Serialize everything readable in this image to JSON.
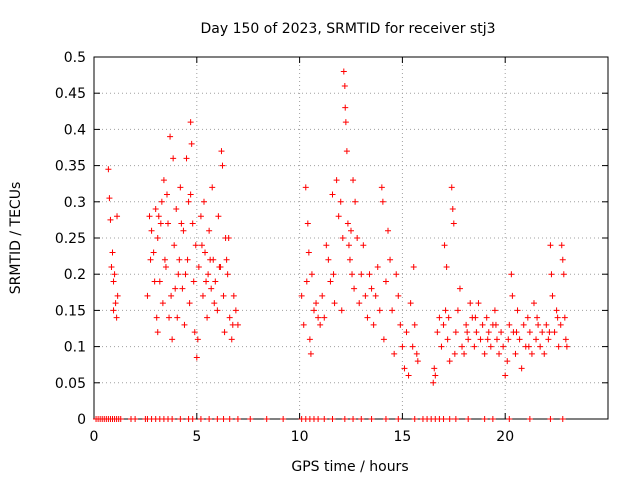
{
  "chart_data": {
    "type": "scatter",
    "title": "Day 150 of 2023, SRMTID for receiver stj3",
    "xlabel": "GPS time / hours",
    "ylabel": "SRMTID / TECUs",
    "xlim": [
      0,
      25
    ],
    "ylim": [
      0,
      0.5
    ],
    "xticks": [
      0,
      5,
      10,
      15,
      20
    ],
    "yticks": [
      0,
      0.05,
      0.1,
      0.15,
      0.2,
      0.25,
      0.3,
      0.35,
      0.4,
      0.45,
      0.5
    ],
    "xtick_labels": [
      "0",
      "5",
      "10",
      "15",
      "20"
    ],
    "ytick_labels": [
      "0",
      "0.05",
      "0.1",
      "0.15",
      "0.2",
      "0.25",
      "0.3",
      "0.35",
      "0.4",
      "0.45",
      "0.5"
    ],
    "grid": true,
    "marker": "+",
    "color": "#ff0000",
    "series": [
      {
        "name": "SRMTID",
        "points": [
          [
            0.7,
            0.345
          ],
          [
            0.75,
            0.305
          ],
          [
            0.8,
            0.275
          ],
          [
            0.85,
            0.21
          ],
          [
            0.9,
            0.23
          ],
          [
            0.95,
            0.19
          ],
          [
            1.0,
            0.2
          ],
          [
            1.05,
            0.16
          ],
          [
            1.1,
            0.14
          ],
          [
            1.12,
            0.28
          ],
          [
            1.15,
            0.17
          ],
          [
            0.95,
            0.15
          ],
          [
            2.6,
            0.17
          ],
          [
            2.7,
            0.28
          ],
          [
            2.8,
            0.26
          ],
          [
            2.9,
            0.23
          ],
          [
            3.0,
            0.29
          ],
          [
            3.1,
            0.25
          ],
          [
            3.1,
            0.12
          ],
          [
            3.2,
            0.19
          ],
          [
            3.3,
            0.3
          ],
          [
            3.35,
            0.16
          ],
          [
            3.4,
            0.33
          ],
          [
            3.5,
            0.21
          ],
          [
            3.6,
            0.27
          ],
          [
            3.7,
            0.39
          ],
          [
            3.75,
            0.17
          ],
          [
            3.8,
            0.11
          ],
          [
            3.85,
            0.36
          ],
          [
            3.9,
            0.24
          ],
          [
            4.0,
            0.29
          ],
          [
            4.05,
            0.14
          ],
          [
            4.1,
            0.2
          ],
          [
            4.2,
            0.32
          ],
          [
            4.3,
            0.18
          ],
          [
            4.35,
            0.26
          ],
          [
            4.4,
            0.13
          ],
          [
            4.5,
            0.36
          ],
          [
            4.55,
            0.22
          ],
          [
            4.6,
            0.3
          ],
          [
            4.65,
            0.16
          ],
          [
            4.7,
            0.41
          ],
          [
            4.75,
            0.38
          ],
          [
            4.8,
            0.27
          ],
          [
            4.85,
            0.19
          ],
          [
            4.9,
            0.12
          ],
          [
            4.95,
            0.24
          ],
          [
            5.0,
            0.085
          ],
          [
            5.05,
            0.11
          ],
          [
            5.1,
            0.21
          ],
          [
            5.2,
            0.28
          ],
          [
            5.3,
            0.17
          ],
          [
            5.35,
            0.3
          ],
          [
            5.4,
            0.23
          ],
          [
            5.5,
            0.14
          ],
          [
            5.55,
            0.2
          ],
          [
            5.6,
            0.26
          ],
          [
            5.7,
            0.18
          ],
          [
            5.75,
            0.32
          ],
          [
            5.8,
            0.22
          ],
          [
            5.9,
            0.19
          ],
          [
            6.0,
            0.15
          ],
          [
            6.05,
            0.28
          ],
          [
            6.1,
            0.21
          ],
          [
            6.2,
            0.37
          ],
          [
            6.25,
            0.35
          ],
          [
            6.3,
            0.17
          ],
          [
            6.35,
            0.12
          ],
          [
            6.4,
            0.25
          ],
          [
            6.5,
            0.2
          ],
          [
            6.6,
            0.14
          ],
          [
            6.7,
            0.11
          ],
          [
            6.8,
            0.17
          ],
          [
            6.9,
            0.15
          ],
          [
            7.0,
            0.13
          ],
          [
            3.05,
            0.14
          ],
          [
            3.25,
            0.27
          ],
          [
            3.45,
            0.22
          ],
          [
            3.65,
            0.14
          ],
          [
            4.15,
            0.22
          ],
          [
            4.25,
            0.27
          ],
          [
            4.45,
            0.2
          ],
          [
            5.25,
            0.24
          ],
          [
            5.45,
            0.19
          ],
          [
            5.65,
            0.22
          ],
          [
            5.85,
            0.16
          ],
          [
            6.15,
            0.21
          ],
          [
            6.45,
            0.22
          ],
          [
            6.55,
            0.25
          ],
          [
            6.75,
            0.13
          ],
          [
            2.75,
            0.22
          ],
          [
            2.95,
            0.19
          ],
          [
            3.15,
            0.28
          ],
          [
            3.55,
            0.31
          ],
          [
            3.95,
            0.18
          ],
          [
            4.7,
            0.31
          ],
          [
            10.1,
            0.17
          ],
          [
            10.2,
            0.13
          ],
          [
            10.3,
            0.32
          ],
          [
            10.35,
            0.19
          ],
          [
            10.4,
            0.27
          ],
          [
            10.45,
            0.23
          ],
          [
            10.5,
            0.11
          ],
          [
            10.55,
            0.09
          ],
          [
            10.6,
            0.2
          ],
          [
            10.7,
            0.15
          ],
          [
            10.8,
            0.16
          ],
          [
            10.9,
            0.14
          ],
          [
            11.0,
            0.13
          ],
          [
            11.1,
            0.17
          ],
          [
            11.2,
            0.14
          ],
          [
            11.3,
            0.24
          ],
          [
            11.4,
            0.22
          ],
          [
            11.5,
            0.19
          ],
          [
            11.6,
            0.31
          ],
          [
            11.65,
            0.2
          ],
          [
            11.7,
            0.16
          ],
          [
            11.8,
            0.33
          ],
          [
            11.9,
            0.28
          ],
          [
            12.0,
            0.3
          ],
          [
            12.05,
            0.15
          ],
          [
            12.1,
            0.25
          ],
          [
            12.15,
            0.48
          ],
          [
            12.2,
            0.46
          ],
          [
            12.22,
            0.43
          ],
          [
            12.25,
            0.41
          ],
          [
            12.3,
            0.37
          ],
          [
            12.35,
            0.27
          ],
          [
            12.4,
            0.24
          ],
          [
            12.45,
            0.22
          ],
          [
            12.5,
            0.26
          ],
          [
            12.55,
            0.2
          ],
          [
            12.6,
            0.33
          ],
          [
            12.65,
            0.18
          ],
          [
            12.7,
            0.3
          ],
          [
            12.8,
            0.25
          ],
          [
            12.9,
            0.16
          ],
          [
            13.0,
            0.2
          ],
          [
            13.1,
            0.24
          ],
          [
            13.2,
            0.17
          ],
          [
            13.3,
            0.14
          ],
          [
            13.4,
            0.2
          ],
          [
            13.5,
            0.18
          ],
          [
            13.6,
            0.13
          ],
          [
            13.7,
            0.17
          ],
          [
            13.8,
            0.21
          ],
          [
            13.9,
            0.15
          ],
          [
            14.0,
            0.32
          ],
          [
            14.05,
            0.3
          ],
          [
            14.1,
            0.11
          ],
          [
            14.2,
            0.19
          ],
          [
            14.3,
            0.26
          ],
          [
            14.4,
            0.22
          ],
          [
            14.5,
            0.15
          ],
          [
            14.6,
            0.09
          ],
          [
            14.7,
            0.2
          ],
          [
            14.8,
            0.17
          ],
          [
            14.9,
            0.13
          ],
          [
            15.0,
            0.1
          ],
          [
            15.1,
            0.07
          ],
          [
            15.2,
            0.12
          ],
          [
            15.3,
            0.06
          ],
          [
            15.4,
            0.16
          ],
          [
            15.5,
            0.1
          ],
          [
            15.55,
            0.21
          ],
          [
            15.6,
            0.13
          ],
          [
            15.7,
            0.09
          ],
          [
            15.75,
            0.08
          ],
          [
            16.5,
            0.05
          ],
          [
            16.55,
            0.07
          ],
          [
            16.6,
            0.06
          ],
          [
            16.7,
            0.12
          ],
          [
            16.8,
            0.14
          ],
          [
            16.9,
            0.1
          ],
          [
            17.0,
            0.13
          ],
          [
            17.05,
            0.24
          ],
          [
            17.1,
            0.15
          ],
          [
            17.15,
            0.21
          ],
          [
            17.2,
            0.11
          ],
          [
            17.3,
            0.08
          ],
          [
            17.4,
            0.32
          ],
          [
            17.45,
            0.29
          ],
          [
            17.5,
            0.27
          ],
          [
            17.6,
            0.12
          ],
          [
            17.7,
            0.15
          ],
          [
            17.8,
            0.18
          ],
          [
            17.9,
            0.1
          ],
          [
            18.0,
            0.09
          ],
          [
            18.1,
            0.13
          ],
          [
            18.2,
            0.11
          ],
          [
            18.3,
            0.16
          ],
          [
            18.4,
            0.14
          ],
          [
            18.5,
            0.1
          ],
          [
            18.6,
            0.12
          ],
          [
            18.7,
            0.16
          ],
          [
            18.8,
            0.11
          ],
          [
            18.9,
            0.13
          ],
          [
            19.0,
            0.09
          ],
          [
            19.1,
            0.14
          ],
          [
            19.2,
            0.12
          ],
          [
            19.3,
            0.1
          ],
          [
            19.4,
            0.13
          ],
          [
            19.5,
            0.15
          ],
          [
            19.6,
            0.11
          ],
          [
            19.7,
            0.09
          ],
          [
            19.8,
            0.12
          ],
          [
            19.9,
            0.1
          ],
          [
            20.0,
            0.06
          ],
          [
            20.1,
            0.08
          ],
          [
            20.2,
            0.13
          ],
          [
            20.3,
            0.2
          ],
          [
            20.35,
            0.17
          ],
          [
            20.4,
            0.12
          ],
          [
            20.5,
            0.09
          ],
          [
            20.6,
            0.15
          ],
          [
            20.7,
            0.11
          ],
          [
            20.8,
            0.07
          ],
          [
            20.9,
            0.13
          ],
          [
            21.0,
            0.1
          ],
          [
            21.1,
            0.14
          ],
          [
            21.2,
            0.12
          ],
          [
            21.3,
            0.09
          ],
          [
            21.4,
            0.16
          ],
          [
            21.5,
            0.11
          ],
          [
            21.6,
            0.13
          ],
          [
            21.7,
            0.1
          ],
          [
            21.8,
            0.12
          ],
          [
            21.9,
            0.09
          ],
          [
            22.0,
            0.13
          ],
          [
            22.1,
            0.11
          ],
          [
            22.2,
            0.24
          ],
          [
            22.25,
            0.2
          ],
          [
            22.3,
            0.17
          ],
          [
            22.4,
            0.12
          ],
          [
            22.5,
            0.15
          ],
          [
            22.6,
            0.1
          ],
          [
            22.7,
            0.13
          ],
          [
            22.75,
            0.24
          ],
          [
            22.8,
            0.22
          ],
          [
            22.85,
            0.2
          ],
          [
            22.9,
            0.14
          ],
          [
            22.95,
            0.11
          ],
          [
            23.0,
            0.1
          ],
          [
            17.25,
            0.14
          ],
          [
            17.55,
            0.09
          ],
          [
            18.15,
            0.12
          ],
          [
            18.55,
            0.14
          ],
          [
            19.15,
            0.11
          ],
          [
            19.55,
            0.13
          ],
          [
            20.15,
            0.11
          ],
          [
            20.55,
            0.12
          ],
          [
            21.15,
            0.1
          ],
          [
            21.55,
            0.14
          ],
          [
            22.15,
            0.12
          ],
          [
            22.55,
            0.14
          ]
        ],
        "zero_points_x": [
          0.1,
          0.2,
          0.3,
          0.4,
          0.5,
          0.6,
          0.7,
          0.8,
          0.9,
          1.0,
          1.1,
          1.2,
          1.3,
          1.8,
          2.0,
          2.5,
          2.6,
          2.8,
          3.0,
          3.2,
          3.4,
          3.6,
          3.8,
          4.2,
          4.6,
          4.8,
          5.2,
          5.6,
          6.0,
          6.3,
          6.6,
          7.0,
          7.6,
          8.4,
          9.2,
          10.1,
          10.3,
          10.5,
          10.7,
          10.9,
          11.2,
          11.6,
          12.2,
          12.6,
          13.0,
          13.5,
          14.2,
          14.8,
          15.6,
          16.0,
          16.2,
          16.4,
          16.6,
          16.8,
          17.0,
          17.3,
          17.6,
          18.2,
          19.0,
          19.4,
          20.2,
          21.2,
          22.2,
          22.8
        ]
      }
    ]
  }
}
